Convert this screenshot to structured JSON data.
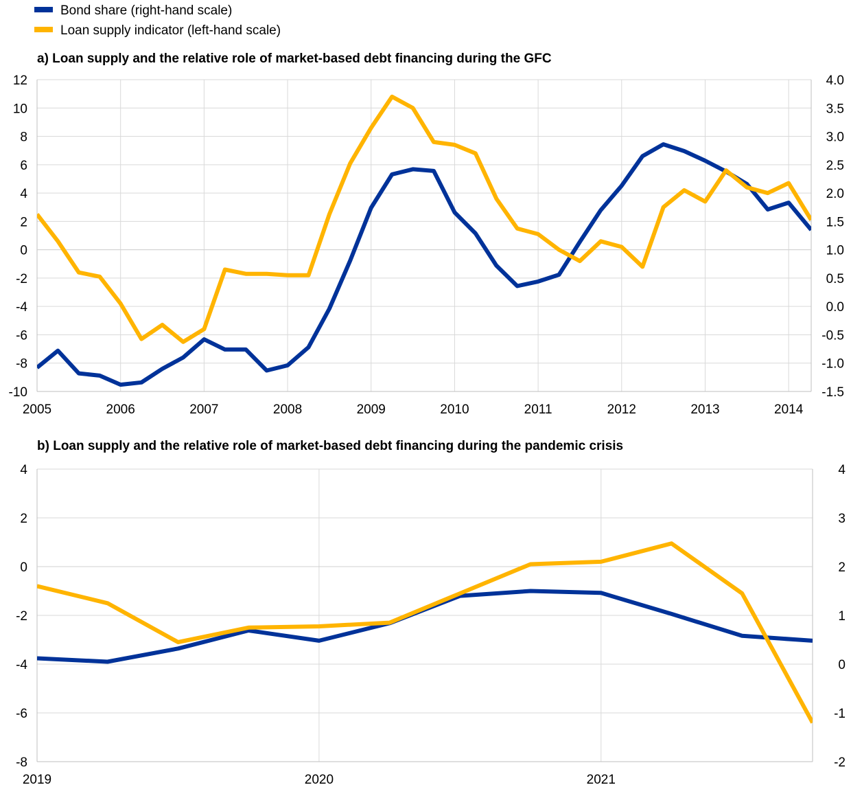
{
  "legend": [
    {
      "label": "Bond share (right-hand scale)",
      "color": "#003299"
    },
    {
      "label": "Loan supply indicator (left-hand scale)",
      "color": "#FFB400"
    }
  ],
  "chart_data": [
    {
      "type": "line",
      "title": "a) Loan supply and the relative role of market-based debt financing during the GFC",
      "x_labels": [
        "2005",
        "2006",
        "2007",
        "2008",
        "2009",
        "2010",
        "2011",
        "2012",
        "2013",
        "2014"
      ],
      "x_range": [
        2005,
        2014.27
      ],
      "left_axis": {
        "range": [
          -10,
          12
        ],
        "ticks": [
          "12",
          "10",
          "8",
          "6",
          "4",
          "2",
          "0",
          "-2",
          "-4",
          "-6",
          "-8",
          "-10"
        ]
      },
      "right_axis": {
        "range": [
          -1.5,
          4.0
        ],
        "ticks": [
          "4.0",
          "3.5",
          "3.0",
          "2.5",
          "2.0",
          "1.5",
          "1.0",
          "0.5",
          "0.0",
          "-0.5",
          "-1.0",
          "-1.5"
        ]
      },
      "series": [
        {
          "name": "Loan supply indicator (left-hand scale)",
          "axis": "left",
          "color": "#FFB400",
          "x": [
            2005,
            2005.25,
            2005.5,
            2005.75,
            2006,
            2006.25,
            2006.5,
            2006.75,
            2007,
            2007.25,
            2007.5,
            2007.75,
            2008,
            2008.25,
            2008.5,
            2008.75,
            2009,
            2009.25,
            2009.5,
            2009.75,
            2010,
            2010.25,
            2010.5,
            2010.75,
            2011,
            2011.25,
            2011.5,
            2011.75,
            2012,
            2012.25,
            2012.5,
            2012.75,
            2013,
            2013.25,
            2013.5,
            2013.75,
            2014,
            2014.27
          ],
          "y": [
            2.5,
            0.6,
            -1.6,
            -1.9,
            -3.8,
            -6.3,
            -5.3,
            -6.5,
            -5.6,
            -1.4,
            -1.7,
            -1.7,
            -1.8,
            -1.8,
            2.5,
            6.1,
            8.6,
            10.8,
            10.0,
            7.6,
            7.4,
            6.8,
            3.6,
            1.5,
            1.1,
            0.0,
            -0.8,
            0.6,
            0.2,
            -1.2,
            3.0,
            4.2,
            3.4,
            5.6,
            4.4,
            4.0,
            4.7,
            2.1
          ]
        },
        {
          "name": "Bond share (right-hand scale)",
          "axis": "right",
          "color": "#003299",
          "x": [
            2005,
            2005.25,
            2005.5,
            2005.75,
            2006,
            2006.25,
            2006.5,
            2006.75,
            2007,
            2007.25,
            2007.5,
            2007.75,
            2008,
            2008.25,
            2008.5,
            2008.75,
            2009,
            2009.25,
            2009.5,
            2009.75,
            2010,
            2010.25,
            2010.5,
            2010.75,
            2011,
            2011.25,
            2011.5,
            2011.75,
            2012,
            2012.25,
            2012.5,
            2012.75,
            2013,
            2013.25,
            2013.5,
            2013.75,
            2014,
            2014.27
          ],
          "y": [
            -1.08,
            -0.78,
            -1.18,
            -1.22,
            -1.38,
            -1.34,
            -1.1,
            -0.9,
            -0.58,
            -0.76,
            -0.76,
            -1.13,
            -1.04,
            -0.72,
            -0.04,
            0.81,
            1.74,
            2.33,
            2.42,
            2.39,
            1.66,
            1.29,
            0.72,
            0.36,
            0.44,
            0.56,
            1.14,
            1.7,
            2.13,
            2.65,
            2.86,
            2.74,
            2.57,
            2.38,
            2.16,
            1.71,
            1.83,
            1.35
          ]
        }
      ]
    },
    {
      "type": "line",
      "title": "b) Loan supply and the relative role of market-based debt financing during the pandemic crisis",
      "x_labels": [
        "2019",
        "2020",
        "2021"
      ],
      "x_range": [
        2019,
        2021.75
      ],
      "left_axis": {
        "range": [
          -8,
          4
        ],
        "ticks": [
          "4",
          "2",
          "0",
          "-2",
          "-4",
          "-6",
          "-8"
        ]
      },
      "right_axis": {
        "range": [
          -2,
          4
        ],
        "ticks": [
          "4",
          "3",
          "2",
          "1",
          "0",
          "-1",
          "-2"
        ]
      },
      "series": [
        {
          "name": "Loan supply indicator (left-hand scale)",
          "axis": "left",
          "color": "#FFB400",
          "x": [
            2019,
            2019.25,
            2019.5,
            2019.75,
            2020,
            2020.25,
            2020.5,
            2020.75,
            2021,
            2021.25,
            2021.5,
            2021.75
          ],
          "y": [
            -0.8,
            -1.5,
            -3.1,
            -2.5,
            -2.45,
            -2.3,
            -1.1,
            0.1,
            0.2,
            0.95,
            -1.1,
            -6.4
          ]
        },
        {
          "name": "Bond share (right-hand scale)",
          "axis": "right",
          "color": "#003299",
          "x": [
            2019,
            2019.25,
            2019.5,
            2019.75,
            2020,
            2020.25,
            2020.5,
            2020.75,
            2021,
            2021.25,
            2021.5,
            2021.75
          ],
          "y": [
            0.12,
            0.05,
            0.32,
            0.69,
            0.48,
            0.84,
            1.4,
            1.5,
            1.46,
            1.03,
            0.58,
            0.48
          ]
        }
      ]
    }
  ]
}
